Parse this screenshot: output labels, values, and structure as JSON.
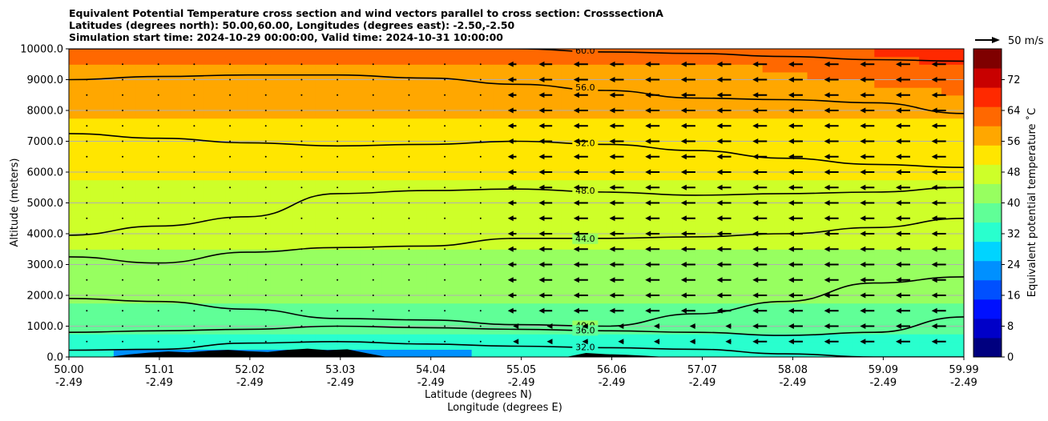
{
  "chart_data": {
    "type": "heatmap",
    "title_lines": [
      "Equivalent Potential Temperature cross section and wind vectors parallel to cross section: CrosssectionA",
      "Latitudes (degrees north): 50.00,60.00, Longitudes (degrees east): -2.50,-2.50",
      "Simulation start time: 2024-10-29 00:00:00, Valid time: 2024-10-31 10:00:00"
    ],
    "xlabel": "Latitude (degrees N)",
    "xlabel2": "Longitude (degrees E)",
    "ylabel": "Altitude (meters)",
    "xlim": [
      50.0,
      59.99
    ],
    "ylim": [
      0,
      10000
    ],
    "x_ticks": [
      {
        "lat": "50.00",
        "lon": "-2.49",
        "value": 50.0
      },
      {
        "lat": "51.01",
        "lon": "-2.49",
        "value": 51.01
      },
      {
        "lat": "52.02",
        "lon": "-2.49",
        "value": 52.02
      },
      {
        "lat": "53.03",
        "lon": "-2.49",
        "value": 53.03
      },
      {
        "lat": "54.04",
        "lon": "-2.49",
        "value": 54.04
      },
      {
        "lat": "55.05",
        "lon": "-2.49",
        "value": 55.05
      },
      {
        "lat": "56.06",
        "lon": "-2.49",
        "value": 56.06
      },
      {
        "lat": "57.07",
        "lon": "-2.49",
        "value": 57.07
      },
      {
        "lat": "58.08",
        "lon": "-2.49",
        "value": 58.08
      },
      {
        "lat": "59.09",
        "lon": "-2.49",
        "value": 59.09
      },
      {
        "lat": "59.99",
        "lon": "-2.49",
        "value": 59.99
      }
    ],
    "y_ticks": [
      {
        "label": "0.0",
        "value": 0
      },
      {
        "label": "1000.0",
        "value": 1000
      },
      {
        "label": "2000.0",
        "value": 2000
      },
      {
        "label": "3000.0",
        "value": 3000
      },
      {
        "label": "4000.0",
        "value": 4000
      },
      {
        "label": "5000.0",
        "value": 5000
      },
      {
        "label": "6000.0",
        "value": 6000
      },
      {
        "label": "7000.0",
        "value": 7000
      },
      {
        "label": "8000.0",
        "value": 8000
      },
      {
        "label": "9000.0",
        "value": 9000
      },
      {
        "label": "10000.0",
        "value": 10000
      }
    ],
    "grid": "horizontal",
    "colorbar": {
      "label": "Equivalent potential temperature $^\\circ$C",
      "label_text": "Equivalent potential temperature ˚C",
      "range": [
        0,
        80
      ],
      "ticks": [
        "0",
        "8",
        "16",
        "24",
        "32",
        "40",
        "48",
        "56",
        "64",
        "72"
      ],
      "colors": [
        "#00007f",
        "#0000c8",
        "#0010ff",
        "#0050ff",
        "#0090ff",
        "#00d4ff",
        "#29ffce",
        "#60ff97",
        "#97ff60",
        "#ceff29",
        "#ffe600",
        "#ffa700",
        "#ff6800",
        "#ff2900",
        "#c80000",
        "#7f0000"
      ]
    },
    "quiver_key": {
      "label": "50 m/s",
      "speed": 50
    },
    "contour_levels": [
      {
        "level": 60.0,
        "label": "60.0",
        "heights": [
          10000,
          10000,
          10000,
          10000,
          10000,
          10000,
          9900,
          9850,
          9750,
          9650,
          9600
        ]
      },
      {
        "level": 56.0,
        "label": "56.0",
        "heights": [
          9000,
          9100,
          9150,
          9150,
          9050,
          8850,
          8650,
          8400,
          8350,
          8250,
          7900
        ]
      },
      {
        "level": 52.0,
        "label": "52.0",
        "heights": [
          7250,
          7100,
          6950,
          6850,
          6900,
          7000,
          6900,
          6700,
          6450,
          6250,
          6150
        ]
      },
      {
        "level": 48.0,
        "label": "48.0",
        "heights": [
          3950,
          4250,
          4550,
          5300,
          5400,
          5450,
          5350,
          5250,
          5300,
          5350,
          5500
        ]
      },
      {
        "level": 44.0,
        "label": "44.0",
        "heights": [
          3250,
          3050,
          3400,
          3550,
          3600,
          3850,
          3850,
          3900,
          4000,
          4200,
          4500
        ]
      },
      {
        "level": 40.0,
        "label": "40.0",
        "heights": [
          1900,
          1800,
          1550,
          1250,
          1200,
          1050,
          1000,
          1400,
          1800,
          2400,
          2600
        ]
      },
      {
        "level": 36.0,
        "label": "36.0",
        "heights": [
          800,
          850,
          900,
          1000,
          950,
          900,
          850,
          800,
          700,
          800,
          1300
        ]
      },
      {
        "level": 32.0,
        "label": "32.0",
        "heights": [
          220,
          250,
          450,
          500,
          420,
          350,
          300,
          250,
          100,
          0,
          0
        ]
      }
    ],
    "theta_profile": [
      {
        "z": 0,
        "v": 30
      },
      {
        "z": 400,
        "v": 33
      },
      {
        "z": 1000,
        "v": 36.5
      },
      {
        "z": 2000,
        "v": 40.5
      },
      {
        "z": 3000,
        "v": 43.5
      },
      {
        "z": 4000,
        "v": 46
      },
      {
        "z": 5000,
        "v": 48
      },
      {
        "z": 6000,
        "v": 50.5
      },
      {
        "z": 7000,
        "v": 53
      },
      {
        "z": 8000,
        "v": 55.5
      },
      {
        "z": 9000,
        "v": 58
      },
      {
        "z": 10000,
        "v": 61.5
      }
    ],
    "cold_pool": {
      "x_range": [
        50.5,
        54.5
      ],
      "z_top": 400,
      "v": 20
    },
    "east_warm_top": {
      "x_start": 57.5,
      "v_add": 7
    },
    "wind_u": {
      "x_easterly_start": 54.7,
      "speed": 12
    },
    "terrain_heights": [
      0,
      0,
      0,
      80,
      140,
      180,
      150,
      200,
      230,
      190,
      160,
      230,
      270,
      220,
      250,
      120,
      0,
      0,
      0,
      0,
      0,
      0,
      0,
      0,
      0,
      0,
      130,
      90,
      70,
      40,
      0,
      0,
      0,
      0,
      0,
      0,
      0,
      0,
      0,
      0,
      0,
      0,
      0,
      0,
      0,
      0
    ],
    "terrain_x_range": [
      50.0,
      59.99
    ]
  }
}
